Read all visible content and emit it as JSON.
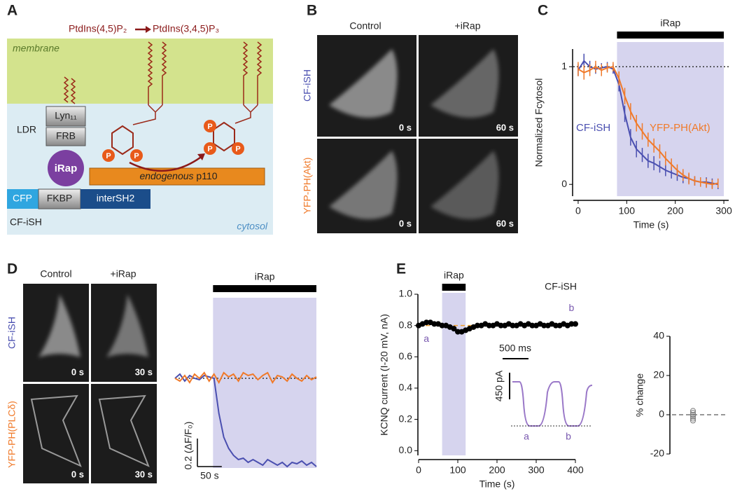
{
  "panel_labels": [
    "A",
    "B",
    "C",
    "D",
    "E"
  ],
  "diagram": {
    "lipid_from": "PtdIns(4,5)P₂",
    "lipid_to": "PtdIns(3,4,5)P₃",
    "membrane": "membrane",
    "cytosol": "cytosol",
    "lyn": "Lyn₁₁",
    "frb": "FRB",
    "ldr": "LDR",
    "irap": "iRap",
    "cfp": "CFP",
    "fkbp": "FKBP",
    "intersh2": "interSH2",
    "construct": "CF-iSH",
    "p110_italic": "endogenous",
    "p110": "p110",
    "phosphate": "P"
  },
  "micrographs_B": {
    "columns": [
      "Control",
      "+iRap"
    ],
    "rows": [
      "CF-iSH",
      "YFP-PH(Akt)"
    ],
    "times": [
      [
        "0 s",
        "60 s"
      ],
      [
        "0 s",
        "60 s"
      ]
    ]
  },
  "micrographs_D": {
    "columns": [
      "Control",
      "+iRap"
    ],
    "rows": [
      "CF-iSH",
      "YFP-PH(PLCδ)"
    ],
    "times": [
      [
        "0 s",
        "30 s"
      ],
      [
        "0 s",
        "30 s"
      ]
    ]
  },
  "chart_data": [
    {
      "type": "line",
      "ylabel": "Normalized Fcytosol",
      "xlabel": "Time (s)",
      "x": [
        0,
        12,
        24,
        36,
        48,
        60,
        72,
        84,
        96,
        108,
        120,
        132,
        144,
        156,
        168,
        180,
        192,
        204,
        216,
        228,
        240,
        252,
        264,
        276,
        288
      ],
      "series": [
        {
          "name": "CF-iSH",
          "color": "#4a4fb0",
          "values": [
            0.97,
            1.05,
            1.0,
            0.98,
            0.99,
            1.0,
            0.98,
            0.85,
            0.6,
            0.4,
            0.3,
            0.25,
            0.2,
            0.18,
            0.15,
            0.12,
            0.1,
            0.08,
            0.06,
            0.05,
            0.03,
            0.02,
            0.02,
            0.01,
            0.0
          ],
          "errors": [
            0.05,
            0.06,
            0.05,
            0.04,
            0.04,
            0.04,
            0.04,
            0.06,
            0.07,
            0.07,
            0.07,
            0.06,
            0.06,
            0.06,
            0.05,
            0.05,
            0.05,
            0.05,
            0.05,
            0.04,
            0.04,
            0.04,
            0.04,
            0.04,
            0.04
          ]
        },
        {
          "name": "YFP-PH(Akt)",
          "color": "#f07a2a",
          "values": [
            0.98,
            0.95,
            0.97,
            1.0,
            0.97,
            0.99,
            1.0,
            0.9,
            0.75,
            0.62,
            0.52,
            0.45,
            0.38,
            0.33,
            0.28,
            0.22,
            0.17,
            0.12,
            0.08,
            0.05,
            0.03,
            0.02,
            0.01,
            0.0,
            0.01
          ],
          "errors": [
            0.06,
            0.06,
            0.05,
            0.05,
            0.05,
            0.04,
            0.04,
            0.06,
            0.07,
            0.07,
            0.07,
            0.07,
            0.06,
            0.06,
            0.06,
            0.06,
            0.05,
            0.05,
            0.05,
            0.05,
            0.04,
            0.04,
            0.04,
            0.04,
            0.04
          ]
        }
      ],
      "xlim": [
        -10,
        310
      ],
      "ylim": [
        -0.1,
        1.15
      ],
      "xticks": [
        0,
        100,
        200,
        300
      ],
      "yticks": [
        0,
        1
      ],
      "hline": 1,
      "shade": [
        80,
        300
      ],
      "shade_label": "iRap"
    },
    {
      "type": "line",
      "x": [
        0,
        10,
        20,
        30,
        40,
        50,
        60,
        70,
        80,
        90,
        100,
        110,
        120,
        130,
        140,
        150,
        160,
        170,
        180,
        190,
        200,
        210,
        220,
        230,
        240,
        250,
        260,
        270,
        280,
        290
      ],
      "series": [
        {
          "name": "CF-iSH",
          "color": "#4a4fb0",
          "values": [
            0,
            0.03,
            -0.02,
            0.02,
            0,
            -0.01,
            0.02,
            0.01,
            0.0,
            -0.25,
            -0.42,
            -0.5,
            -0.55,
            -0.58,
            -0.57,
            -0.6,
            -0.58,
            -0.6,
            -0.62,
            -0.58,
            -0.6,
            -0.62,
            -0.6,
            -0.63,
            -0.6,
            -0.61,
            -0.59,
            -0.62,
            -0.6,
            -0.63
          ]
        },
        {
          "name": "YFP-PH(PLCδ)",
          "color": "#f07a2a",
          "values": [
            0,
            -0.02,
            0.02,
            -0.03,
            0.03,
            0,
            0.04,
            -0.02,
            0.03,
            -0.03,
            0.04,
            0.01,
            0.03,
            -0.02,
            0.04,
            0.02,
            0.03,
            -0.01,
            0.02,
            0.04,
            -0.03,
            0.02,
            0.01,
            -0.02,
            0.03,
            0.0,
            -0.02,
            0.02,
            -0.01,
            0.01
          ]
        }
      ],
      "xlim": [
        0,
        290
      ],
      "ylim": [
        -0.75,
        0.1
      ],
      "hline": 0,
      "shade": [
        78,
        290
      ],
      "shade_label": "iRap",
      "scalebar_y": {
        "value": 0.2,
        "label": "0.2 (ΔF/F₀)"
      },
      "scalebar_x": {
        "value": 50,
        "label": "50 s"
      }
    },
    {
      "type": "line",
      "title": "CF-iSH",
      "ylabel": "KCNQ current (I-20 mV, nA)",
      "xlabel": "Time (s)",
      "x": [
        0,
        10,
        20,
        30,
        40,
        50,
        60,
        70,
        80,
        90,
        100,
        110,
        120,
        130,
        140,
        150,
        160,
        170,
        180,
        190,
        200,
        210,
        220,
        230,
        240,
        250,
        260,
        270,
        280,
        290,
        300,
        310,
        320,
        330,
        340,
        350,
        360,
        370,
        380,
        390,
        400
      ],
      "values": [
        0.8,
        0.81,
        0.82,
        0.82,
        0.81,
        0.81,
        0.8,
        0.8,
        0.79,
        0.78,
        0.76,
        0.76,
        0.77,
        0.78,
        0.79,
        0.8,
        0.8,
        0.81,
        0.8,
        0.8,
        0.81,
        0.8,
        0.8,
        0.81,
        0.8,
        0.8,
        0.81,
        0.8,
        0.81,
        0.8,
        0.8,
        0.81,
        0.8,
        0.8,
        0.81,
        0.8,
        0.8,
        0.81,
        0.8,
        0.81,
        0.81
      ],
      "color": "#000000",
      "hline": 0.8,
      "xlim": [
        0,
        400
      ],
      "ylim": [
        -0.03,
        1.0
      ],
      "xticks": [
        0,
        100,
        200,
        300,
        400
      ],
      "yticks": [
        {
          "value": 0,
          "label": "0.0"
        },
        {
          "value": 0.2,
          "label": "0.2"
        },
        {
          "value": 0.4,
          "label": "0.4"
        },
        {
          "value": 0.6,
          "label": "0.6"
        },
        {
          "value": 0.8,
          "label": "0.8"
        },
        {
          "value": 1,
          "label": "1.0"
        }
      ],
      "shade": [
        60,
        120
      ],
      "shade_label": "iRap",
      "annotations": [
        "a",
        "b"
      ],
      "inset": {
        "time_scale": "500 ms",
        "current_scale": "450 pA",
        "trace_a": "a",
        "trace_b": "b"
      }
    },
    {
      "type": "strip",
      "ylabel": "% change",
      "values": [
        2,
        0,
        -1,
        -2,
        1,
        -3
      ],
      "ylim": [
        -20,
        40
      ],
      "yticks": [
        -20,
        0,
        20,
        40
      ],
      "hline": 0,
      "color": "#777777"
    }
  ]
}
